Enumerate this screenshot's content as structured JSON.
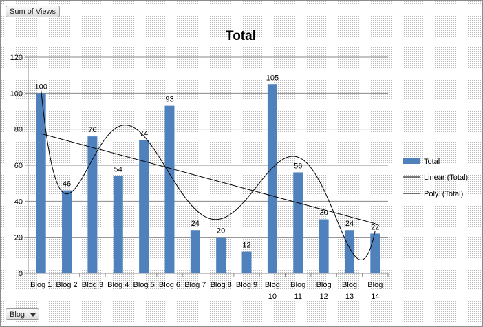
{
  "pivot": {
    "values_field": "Sum of Views",
    "axis_field": "Blog"
  },
  "chart_data": {
    "type": "bar",
    "title": "Total",
    "categories": [
      "Blog 1",
      "Blog 2",
      "Blog 3",
      "Blog 4",
      "Blog 5",
      "Blog 6",
      "Blog 7",
      "Blog 8",
      "Blog 9",
      "Blog 10",
      "Blog 11",
      "Blog 12",
      "Blog 13",
      "Blog 14"
    ],
    "series": [
      {
        "name": "Total",
        "values": [
          100,
          46,
          76,
          54,
          74,
          93,
          24,
          20,
          12,
          105,
          56,
          30,
          24,
          22
        ],
        "color": "#4f81bd"
      }
    ],
    "trendlines": [
      {
        "name": "Linear (Total)",
        "kind": "linear",
        "color": "#000000"
      },
      {
        "name": "Poly. (Total)",
        "kind": "polynomial",
        "color": "#000000"
      }
    ],
    "ylim": [
      0,
      120
    ],
    "yticks": [
      "0",
      "20",
      "40",
      "60",
      "80",
      "100",
      "120"
    ],
    "data_labels": true,
    "grid": true,
    "legend": "right"
  }
}
